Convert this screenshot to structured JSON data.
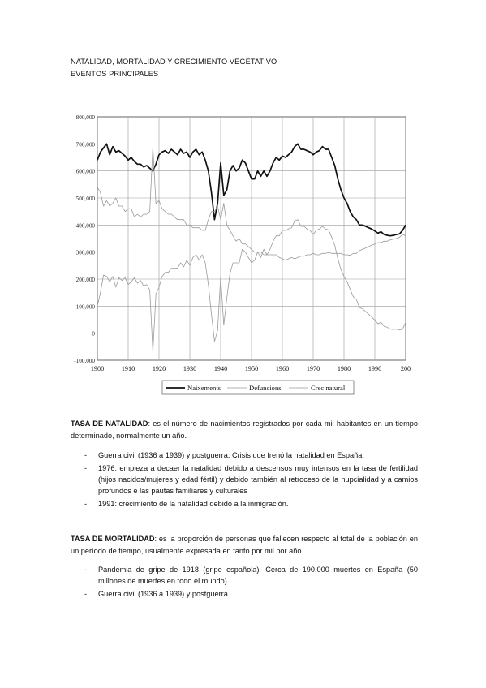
{
  "headings": {
    "title": "NATALIDAD, MORTALIDAD Y CRECIMIENTO VEGETATIVO",
    "subtitle": "EVENTOS PRINCIPALES"
  },
  "chart_data": {
    "type": "line",
    "xlim": [
      1900,
      2000
    ],
    "ylim": [
      -100000,
      800000
    ],
    "x_ticks": [
      "1900",
      "1910",
      "1920",
      "1930",
      "1940",
      "1950",
      "1960",
      "1970",
      "1980",
      "1990",
      "200"
    ],
    "y_ticks": [
      "800,000",
      "700,000",
      "600,000",
      "500,000",
      "400,000",
      "300,000",
      "200,000",
      "100,000",
      "0",
      "-100,000"
    ],
    "grid": true,
    "legend_position": "bottom",
    "series": [
      {
        "name": "Naixements",
        "style": "bold",
        "x": [
          1900,
          1901,
          1902,
          1903,
          1904,
          1905,
          1906,
          1907,
          1908,
          1909,
          1910,
          1911,
          1912,
          1913,
          1914,
          1915,
          1916,
          1917,
          1918,
          1919,
          1920,
          1921,
          1922,
          1923,
          1924,
          1925,
          1926,
          1927,
          1928,
          1929,
          1930,
          1931,
          1932,
          1933,
          1934,
          1935,
          1936,
          1937,
          1938,
          1939,
          1940,
          1941,
          1942,
          1943,
          1944,
          1945,
          1946,
          1947,
          1948,
          1949,
          1950,
          1951,
          1952,
          1953,
          1954,
          1955,
          1956,
          1957,
          1958,
          1959,
          1960,
          1961,
          1962,
          1963,
          1964,
          1965,
          1966,
          1967,
          1968,
          1969,
          1970,
          1971,
          1972,
          1973,
          1974,
          1975,
          1976,
          1977,
          1978,
          1979,
          1980,
          1981,
          1982,
          1983,
          1984,
          1985,
          1986,
          1987,
          1988,
          1989,
          1990,
          1991,
          1992,
          1993,
          1994,
          1995,
          1996,
          1997,
          1998,
          1999,
          2000
        ],
        "values": [
          640000,
          670000,
          685000,
          700000,
          660000,
          690000,
          670000,
          675000,
          665000,
          655000,
          640000,
          650000,
          635000,
          625000,
          625000,
          615000,
          620000,
          610000,
          600000,
          625000,
          660000,
          670000,
          675000,
          665000,
          680000,
          670000,
          660000,
          680000,
          665000,
          670000,
          650000,
          670000,
          680000,
          660000,
          670000,
          640000,
          600000,
          520000,
          420000,
          480000,
          630000,
          510000,
          530000,
          600000,
          620000,
          600000,
          610000,
          640000,
          630000,
          600000,
          570000,
          570000,
          600000,
          580000,
          600000,
          580000,
          600000,
          630000,
          650000,
          640000,
          655000,
          650000,
          660000,
          670000,
          690000,
          700000,
          680000,
          680000,
          675000,
          670000,
          660000,
          670000,
          675000,
          690000,
          680000,
          680000,
          650000,
          620000,
          570000,
          530000,
          500000,
          480000,
          450000,
          430000,
          420000,
          400000,
          400000,
          395000,
          390000,
          385000,
          378000,
          370000,
          375000,
          365000,
          362000,
          360000,
          362000,
          365000,
          367000,
          380000,
          400000
        ]
      },
      {
        "name": "Defuncions",
        "style": "thin",
        "x": [
          1900,
          1901,
          1902,
          1903,
          1904,
          1905,
          1906,
          1907,
          1908,
          1909,
          1910,
          1911,
          1912,
          1913,
          1914,
          1915,
          1916,
          1917,
          1918,
          1919,
          1920,
          1921,
          1922,
          1923,
          1924,
          1925,
          1926,
          1927,
          1928,
          1929,
          1930,
          1931,
          1932,
          1933,
          1934,
          1935,
          1936,
          1937,
          1938,
          1939,
          1940,
          1941,
          1942,
          1943,
          1944,
          1945,
          1946,
          1947,
          1948,
          1949,
          1950,
          1951,
          1952,
          1953,
          1954,
          1955,
          1956,
          1957,
          1958,
          1959,
          1960,
          1961,
          1962,
          1963,
          1964,
          1965,
          1966,
          1967,
          1968,
          1969,
          1970,
          1971,
          1972,
          1973,
          1974,
          1975,
          1976,
          1977,
          1978,
          1979,
          1980,
          1981,
          1982,
          1983,
          1984,
          1985,
          1986,
          1987,
          1988,
          1989,
          1990,
          1991,
          1992,
          1993,
          1994,
          1995,
          1996,
          1997,
          1998,
          1999,
          2000
        ],
        "values": [
          540000,
          520000,
          470000,
          490000,
          470000,
          480000,
          500000,
          470000,
          470000,
          450000,
          460000,
          460000,
          430000,
          440000,
          430000,
          440000,
          440000,
          450000,
          690000,
          480000,
          490000,
          460000,
          450000,
          440000,
          440000,
          430000,
          420000,
          420000,
          420000,
          400000,
          400000,
          390000,
          390000,
          390000,
          380000,
          380000,
          420000,
          450000,
          450000,
          470000,
          420000,
          480000,
          400000,
          380000,
          360000,
          340000,
          350000,
          330000,
          330000,
          320000,
          310000,
          300000,
          300000,
          300000,
          290000,
          290000,
          290000,
          290000,
          290000,
          280000,
          275000,
          270000,
          275000,
          280000,
          275000,
          280000,
          285000,
          285000,
          290000,
          290000,
          295000,
          290000,
          290000,
          295000,
          295000,
          298000,
          295000,
          295000,
          295000,
          295000,
          290000,
          290000,
          288000,
          295000,
          295000,
          305000,
          310000,
          315000,
          320000,
          325000,
          330000,
          335000,
          335000,
          340000,
          340000,
          345000,
          348000,
          350000,
          355000,
          365000,
          360000
        ]
      },
      {
        "name": "Crec natural",
        "style": "thin",
        "x": [
          1900,
          1901,
          1902,
          1903,
          1904,
          1905,
          1906,
          1907,
          1908,
          1909,
          1910,
          1911,
          1912,
          1913,
          1914,
          1915,
          1916,
          1917,
          1918,
          1919,
          1920,
          1921,
          1922,
          1923,
          1924,
          1925,
          1926,
          1927,
          1928,
          1929,
          1930,
          1931,
          1932,
          1933,
          1934,
          1935,
          1936,
          1937,
          1938,
          1939,
          1940,
          1941,
          1942,
          1943,
          1944,
          1945,
          1946,
          1947,
          1948,
          1949,
          1950,
          1951,
          1952,
          1953,
          1954,
          1955,
          1956,
          1957,
          1958,
          1959,
          1960,
          1961,
          1962,
          1963,
          1964,
          1965,
          1966,
          1967,
          1968,
          1969,
          1970,
          1971,
          1972,
          1973,
          1974,
          1975,
          1976,
          1977,
          1978,
          1979,
          1980,
          1981,
          1982,
          1983,
          1984,
          1985,
          1986,
          1987,
          1988,
          1989,
          1990,
          1991,
          1992,
          1993,
          1994,
          1995,
          1996,
          1997,
          1998,
          1999,
          2000
        ],
        "values": [
          100000,
          150000,
          215000,
          210000,
          190000,
          210000,
          170000,
          205000,
          195000,
          205000,
          180000,
          190000,
          205000,
          185000,
          195000,
          175000,
          180000,
          160000,
          -70000,
          145000,
          170000,
          210000,
          225000,
          225000,
          240000,
          240000,
          240000,
          260000,
          245000,
          270000,
          250000,
          280000,
          290000,
          270000,
          290000,
          260000,
          180000,
          70000,
          -30000,
          10000,
          210000,
          30000,
          130000,
          220000,
          260000,
          260000,
          260000,
          310000,
          300000,
          280000,
          260000,
          270000,
          300000,
          280000,
          310000,
          290000,
          310000,
          340000,
          360000,
          360000,
          380000,
          380000,
          385000,
          390000,
          415000,
          420000,
          395000,
          395000,
          385000,
          380000,
          365000,
          380000,
          385000,
          395000,
          385000,
          382000,
          355000,
          325000,
          275000,
          235000,
          210000,
          190000,
          162000,
          135000,
          125000,
          95000,
          90000,
          80000,
          70000,
          60000,
          48000,
          35000,
          40000,
          25000,
          22000,
          15000,
          14000,
          15000,
          12000,
          15000,
          40000
        ]
      }
    ]
  },
  "natalidad": {
    "term": "TASA DE NATALIDAD",
    "definition": ": es el número de nacimientos registrados por cada mil habitantes en un tiempo determinado, normalmente un año.",
    "events": [
      "Guerra civil (1936 a 1939) y postguerra. Crisis que frenó la natalidad en España.",
      "1976: empieza a decaer la natalidad debido a descensos muy intensos en la tasa de fertilidad (hijos nacidos/mujeres y edad fértil) y debido también al retroceso de la nupcialidad y a camios profundos e las pautas familiares y culturales",
      "1991: crecimiento de la natalidad debido a la inmigración."
    ]
  },
  "mortalidad": {
    "term": "TASA DE MORTALIDAD",
    "definition": ": es la proporción de personas que fallecen respecto al total de la población en un período de tiempo, usualmente expresada en tanto por mil por año.",
    "events": [
      "Pandemia de gripe de 1918 (gripe española). Cerca de 190.000 muertes en España (50 millones de muertes en todo el mundo).",
      "Guerra civil (1936 a 1939) y postguerra."
    ]
  },
  "list_marker": "-"
}
